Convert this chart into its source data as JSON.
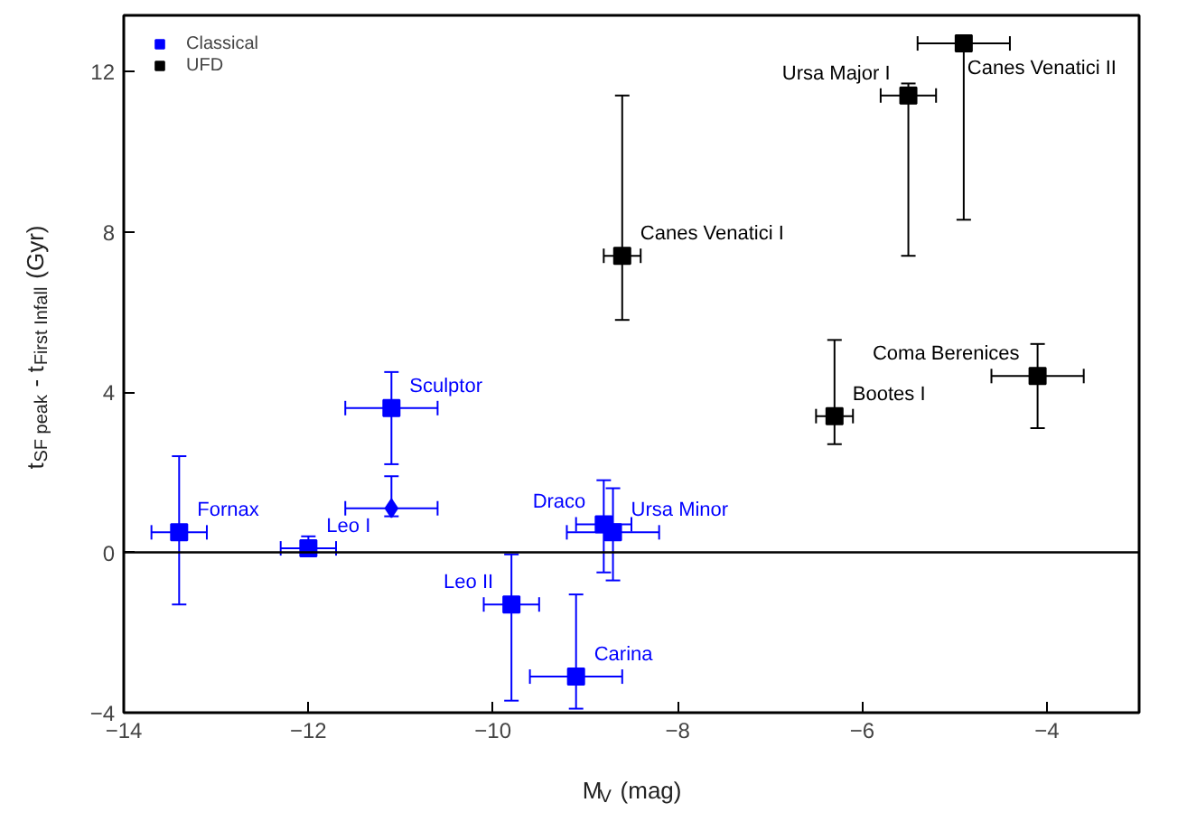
{
  "chart_data": {
    "type": "scatter",
    "xlabel": "M$_{V}$ (mag)",
    "ylabel": "t$_{SF peak}$ - t$_{First Infall}$ (Gyr)",
    "xlim": [
      -14,
      -3
    ],
    "ylim": [
      -4,
      13.4
    ],
    "xticks": [
      -14,
      -12,
      -10,
      -8,
      -6,
      -4
    ],
    "yticks": [
      -4,
      0,
      4,
      8,
      12
    ],
    "grid": false,
    "legend": "top left",
    "marker": "square",
    "ref_lines": [
      {
        "axis": "y",
        "value": 0,
        "color": "#000000"
      }
    ],
    "series": [
      {
        "name": "Classical",
        "color": "#0000ff",
        "x": [
          -13.4,
          -12,
          -11.1,
          -9.8,
          -9.1,
          -8.8,
          -8.7
        ],
        "values": [
          0.5,
          0.1,
          3.6,
          -1.3,
          -3.1,
          0.7,
          0.5
        ],
        "errors": [
          [
            -1.3,
            2.4
          ],
          [
            0.0,
            0.4
          ],
          [
            2.2,
            4.5
          ],
          [
            -3.7,
            -0.05
          ],
          [
            -3.9,
            -1.05
          ],
          [
            -0.5,
            1.8
          ],
          [
            -0.7,
            1.6
          ]
        ],
        "xerrors": [
          [
            -13.7,
            -13.1
          ],
          [
            -12.3,
            -11.7
          ],
          [
            -11.6,
            -10.6
          ],
          [
            -10.1,
            -9.5
          ],
          [
            -9.6,
            -8.6
          ],
          [
            -9.1,
            -8.5
          ],
          [
            -9.2,
            -8.2
          ]
        ],
        "value_labels": [
          "Fornax",
          "Leo I",
          "Sculptor",
          "Leo II",
          "Carina",
          "Draco",
          "Ursa Minor"
        ]
      },
      {
        "name": "UFD",
        "color": "#000000",
        "x": [
          -8.6,
          -5.5,
          -4.9,
          -6.3,
          -4.1
        ],
        "values": [
          7.4,
          11.4,
          12.7,
          3.4,
          4.4
        ],
        "errors": [
          [
            5.8,
            11.4
          ],
          [
            7.4,
            11.7
          ],
          [
            8.3,
            12.9
          ],
          [
            2.7,
            5.3
          ],
          [
            3.1,
            5.2
          ]
        ],
        "xerrors": [
          [
            -8.8,
            -8.4
          ],
          [
            -5.8,
            -5.2
          ],
          [
            -5.4,
            -4.4
          ],
          [
            -6.5,
            -6.1
          ],
          [
            -4.6,
            -3.6
          ]
        ],
        "value_labels": [
          "Canes Venatici I",
          "Ursa Major I",
          "Canes Venatici II",
          "Bootes I",
          "Coma Berenices"
        ]
      },
      {
        "color": "#0000ff",
        "marker": "diamond",
        "x": [
          -11.1
        ],
        "values": [
          1.1
        ],
        "errors": [
          [
            0.9,
            1.9
          ]
        ],
        "xerrors": [
          [
            -11.6,
            -10.6
          ]
        ]
      }
    ]
  }
}
